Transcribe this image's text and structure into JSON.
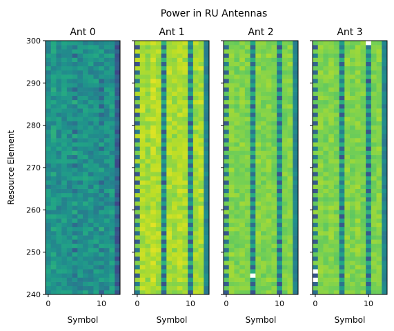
{
  "chart_data": {
    "type": "heatmap",
    "title": "Power in RU Antennas",
    "ylabel": "Resource Element",
    "xlabel": "Symbol",
    "ylim": [
      240,
      300
    ],
    "xlim": [
      -0.5,
      13.5
    ],
    "x_ticks": [
      0,
      10
    ],
    "y_ticks": [
      240,
      250,
      260,
      270,
      280,
      290,
      300
    ],
    "n_symbols": 14,
    "n_rows": 60,
    "colormap": "viridis",
    "color_scale": {
      "min": 0,
      "max": 1
    },
    "panels": [
      {
        "name": "Ant 0",
        "base_level": 0.52,
        "noise": 0.1,
        "column_levels": [
          0.5,
          0.54,
          0.5,
          0.52,
          0.5,
          0.55,
          0.5,
          0.52,
          0.5,
          0.51,
          0.54,
          0.5,
          0.52,
          0.3
        ],
        "marker_columns": [
          5,
          10
        ],
        "marker_level": 0.4,
        "notes": "mostly green with darker blue cells scattered"
      },
      {
        "name": "Ant 1",
        "base_level": 0.88,
        "noise": 0.06,
        "column_levels": [
          0.85,
          0.88,
          0.86,
          0.9,
          0.87,
          0.6,
          0.88,
          0.86,
          0.88,
          0.87,
          0.6,
          0.86,
          0.88,
          0.45
        ],
        "marker_columns": [
          0,
          5,
          10
        ],
        "marker_level": 0.35,
        "notes": "yellow-green field with periodic teal/blue reference cells"
      },
      {
        "name": "Ant 2",
        "base_level": 0.82,
        "noise": 0.05,
        "column_levels": [
          0.8,
          0.82,
          0.8,
          0.82,
          0.8,
          0.6,
          0.82,
          0.8,
          0.82,
          0.8,
          0.6,
          0.8,
          0.82,
          0.45
        ],
        "marker_columns": [
          0,
          5,
          10
        ],
        "marker_level": 0.35,
        "notes": "green-yellow field with periodic reference cells"
      },
      {
        "name": "Ant 3",
        "base_level": 0.82,
        "noise": 0.05,
        "column_levels": [
          0.8,
          0.82,
          0.8,
          0.82,
          0.8,
          0.6,
          0.82,
          0.8,
          0.82,
          0.8,
          0.6,
          0.8,
          0.82,
          0.45
        ],
        "marker_columns": [
          0,
          5,
          10
        ],
        "marker_level": 0.35,
        "notes": "green-yellow field with a few white (empty) cells"
      }
    ]
  },
  "texts": {
    "title": "Power in RU Antennas",
    "ylabel": "Resource Element",
    "xlabel": "Symbol",
    "panels": [
      "Ant 0",
      "Ant 1",
      "Ant 2",
      "Ant 3"
    ]
  }
}
